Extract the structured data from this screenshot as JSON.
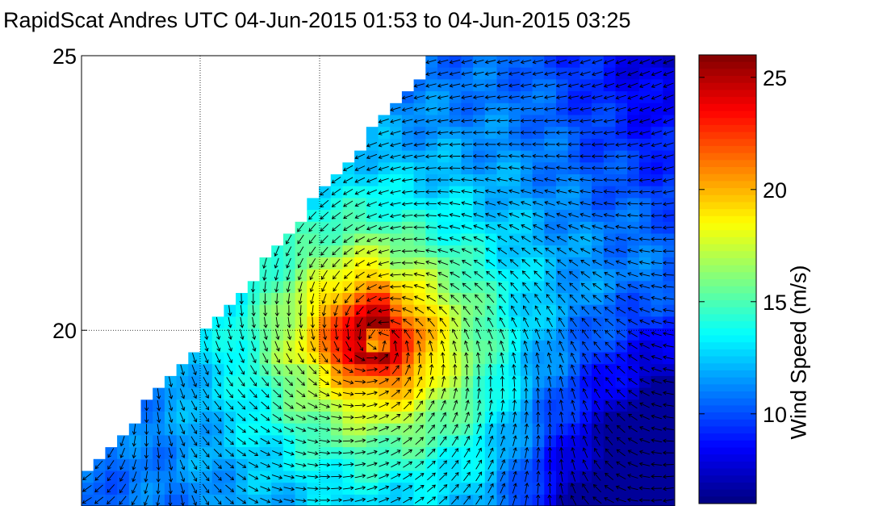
{
  "title": "RapidScat Andres UTC 04-Jun-2015 01:53 to 04-Jun-2015 03:25",
  "chart_data": {
    "type": "heatmap",
    "title": "RapidScat Andres UTC 04-Jun-2015 01:53 to 04-Jun-2015 03:25",
    "xlabel": "",
    "ylabel": "",
    "yticks": [
      25,
      20
    ],
    "ylim": [
      16.8,
      25
    ],
    "grid": true,
    "storm_center_lat": 19.9,
    "swath": "upper-left region outside swath is empty (no data)",
    "colorbar": {
      "label": "Wind Speed (m/s)",
      "range": [
        6,
        26
      ],
      "ticks": [
        10,
        15,
        20,
        25
      ],
      "colormap": "jet"
    },
    "wind_speed_summary": {
      "max_near_center": 24,
      "typical_background": 10,
      "lowest_southeast": 6
    },
    "vectors": "black arrows showing cyclonic (counter-clockwise) circulation around the storm center"
  },
  "colors": {
    "grid": "#000000",
    "arrow": "#000000"
  }
}
